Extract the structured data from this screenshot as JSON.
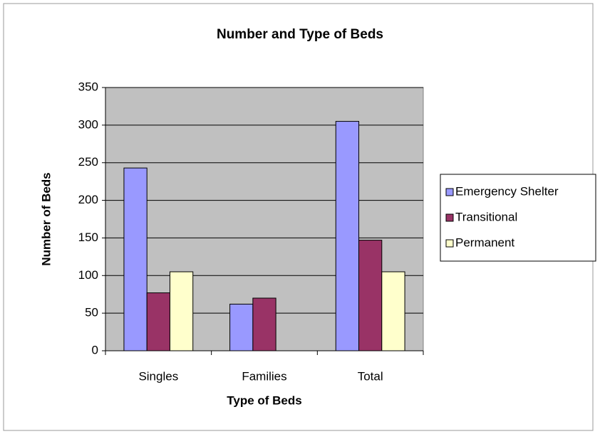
{
  "chart_data": {
    "type": "bar",
    "title": "Number and Type of Beds",
    "x_label": "Type of Beds",
    "y_label": "Number of Beds",
    "categories": [
      "Singles",
      "Families",
      "Total"
    ],
    "series": [
      {
        "name": "Emergency Shelter",
        "color": "#9999ff",
        "values": [
          243,
          62,
          305
        ]
      },
      {
        "name": "Transitional",
        "color": "#993366",
        "values": [
          77,
          70,
          147
        ]
      },
      {
        "name": "Permanent",
        "color": "#ffffcc",
        "values": [
          105,
          0,
          105
        ]
      }
    ],
    "ylim": [
      0,
      350
    ],
    "yticks": [
      0,
      50,
      100,
      150,
      200,
      250,
      300,
      350
    ],
    "grid": true,
    "legend": "right",
    "plot_background": "#c0c0c0"
  }
}
